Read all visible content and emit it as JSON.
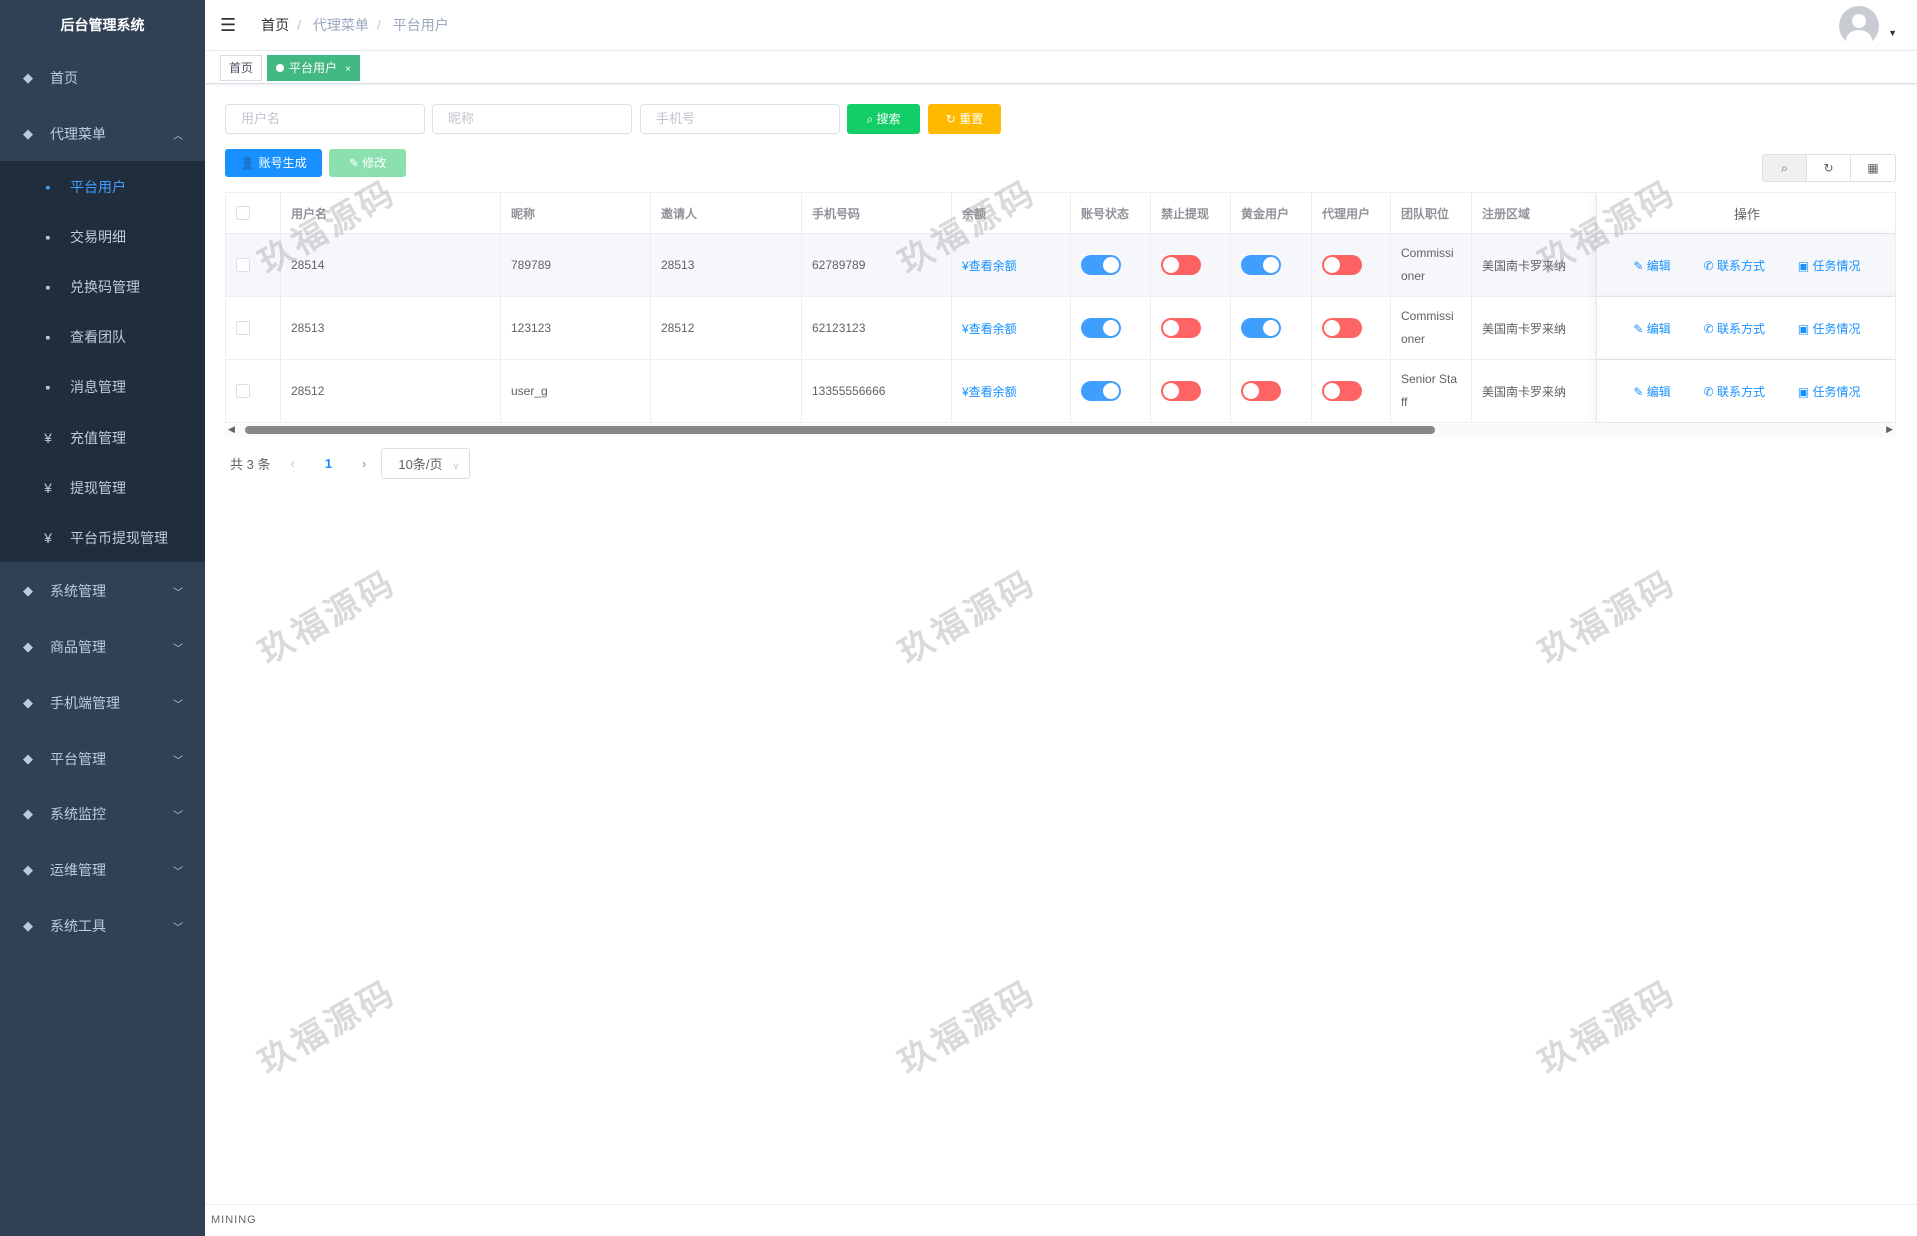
{
  "app_title": "后台管理系统",
  "sidebar": {
    "items": [
      {
        "label": "首页",
        "icon": "dashboard-icon"
      },
      {
        "label": "代理菜单",
        "icon": "user-group-icon",
        "expanded": true,
        "children": [
          {
            "label": "平台用户",
            "icon": "tree-icon",
            "active": true
          },
          {
            "label": "交易明细",
            "icon": "list-icon"
          },
          {
            "label": "兑换码管理",
            "icon": "bitcoin-icon"
          },
          {
            "label": "查看团队",
            "icon": "bar-chart-icon"
          },
          {
            "label": "消息管理",
            "icon": "message-icon"
          },
          {
            "label": "充值管理",
            "icon": "yen-icon"
          },
          {
            "label": "提现管理",
            "icon": "yen-icon"
          },
          {
            "label": "平台币提现管理",
            "icon": "yen-icon"
          }
        ]
      },
      {
        "label": "系统管理",
        "icon": "gear-icon"
      },
      {
        "label": "商品管理",
        "icon": "cart-icon"
      },
      {
        "label": "手机端管理",
        "icon": "cube-icon"
      },
      {
        "label": "平台管理",
        "icon": "tools-icon"
      },
      {
        "label": "系统监控",
        "icon": "monitor-icon"
      },
      {
        "label": "运维管理",
        "icon": "server-icon"
      },
      {
        "label": "系统工具",
        "icon": "wrench-icon"
      }
    ]
  },
  "breadcrumb": [
    "首页",
    "代理菜单",
    "平台用户"
  ],
  "tags": [
    {
      "label": "首页"
    },
    {
      "label": "平台用户",
      "active": true,
      "close": "×"
    }
  ],
  "filters": {
    "username_placeholder": "用户名",
    "nickname_placeholder": "昵称",
    "phone_placeholder": "手机号",
    "search": "搜索",
    "reset": "重置"
  },
  "toolbar": {
    "generate": "账号生成",
    "edit": "修改"
  },
  "table": {
    "columns": [
      "用户名",
      "昵称",
      "邀请人",
      "手机号码",
      "余额",
      "账号状态",
      "禁止提现",
      "黄金用户",
      "代理用户",
      "团队职位",
      "注册区域",
      "操作"
    ],
    "rows": [
      {
        "username": "28514",
        "nickname": "789789",
        "inviter": "28513",
        "phone": "62789789",
        "balance": "¥查看余额",
        "status": true,
        "no_withdraw": false,
        "gold": true,
        "agent": false,
        "position": [
          "Commissi",
          "oner"
        ],
        "region": "美国南卡罗来纳"
      },
      {
        "username": "28513",
        "nickname": "123123",
        "inviter": "28512",
        "phone": "62123123",
        "balance": "¥查看余额",
        "status": true,
        "no_withdraw": false,
        "gold": true,
        "agent": false,
        "position": [
          "Commissi",
          "oner"
        ],
        "region": "美国南卡罗来纳"
      },
      {
        "username": "28512",
        "nickname": "user_g",
        "inviter": "",
        "phone": "13355556666",
        "balance": "¥查看余额",
        "status": true,
        "no_withdraw": false,
        "gold": false,
        "agent": false,
        "position": [
          "Senior Sta",
          "ff"
        ],
        "region": "美国南卡罗来纳"
      }
    ],
    "actions": {
      "edit": "编辑",
      "contact": "联系方式",
      "tasks": "任务情况"
    }
  },
  "pagination": {
    "total": "共 3 条",
    "current": "1",
    "page_size": "10条/页"
  },
  "watermark": "玖福源码",
  "footer": "MINING",
  "colors": {
    "sidebar": "#304156",
    "primary": "#1890ff",
    "success": "#13ce66",
    "warning": "#ffba00",
    "tag_active": "#42b983",
    "switch_on": "#409eff",
    "switch_off": "#ff4949"
  }
}
